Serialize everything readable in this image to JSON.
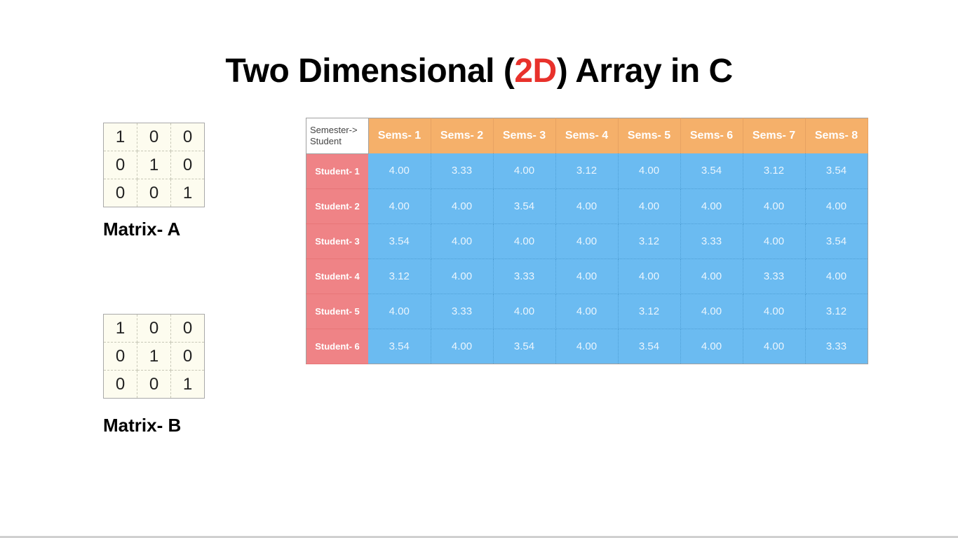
{
  "slide": {
    "title_pre": "Two Dimensional (",
    "title_accent": "2D",
    "title_post": ") Array in C"
  },
  "colors": {
    "title_accent": "#e8312b",
    "header_orange": "#f5b06a",
    "row_header_pink": "#ef8386",
    "cell_blue": "#6bbbf1",
    "matrix_bg": "#fdfcef"
  },
  "matrix_a": {
    "label": "Matrix- A",
    "rows": [
      [
        "1",
        "0",
        "0"
      ],
      [
        "0",
        "1",
        "0"
      ],
      [
        "0",
        "0",
        "1"
      ]
    ]
  },
  "matrix_b": {
    "label": "Matrix- B",
    "rows": [
      [
        "1",
        "0",
        "0"
      ],
      [
        "0",
        "1",
        "0"
      ],
      [
        "0",
        "0",
        "1"
      ]
    ]
  },
  "grades_table": {
    "corner_line1": "Semester->",
    "corner_line2": "Student",
    "columns": [
      "Sems- 1",
      "Sems- 2",
      "Sems- 3",
      "Sems- 4",
      "Sems- 5",
      "Sems- 6",
      "Sems- 7",
      "Sems- 8"
    ],
    "rows": [
      {
        "label": "Student- 1",
        "values": [
          "4.00",
          "3.33",
          "4.00",
          "3.12",
          "4.00",
          "3.54",
          "3.12",
          "3.54"
        ]
      },
      {
        "label": "Student- 2",
        "values": [
          "4.00",
          "4.00",
          "3.54",
          "4.00",
          "4.00",
          "4.00",
          "4.00",
          "4.00"
        ]
      },
      {
        "label": "Student- 3",
        "values": [
          "3.54",
          "4.00",
          "4.00",
          "4.00",
          "3.12",
          "3.33",
          "4.00",
          "3.54"
        ]
      },
      {
        "label": "Student- 4",
        "values": [
          "3.12",
          "4.00",
          "3.33",
          "4.00",
          "4.00",
          "4.00",
          "3.33",
          "4.00"
        ]
      },
      {
        "label": "Student- 5",
        "values": [
          "4.00",
          "3.33",
          "4.00",
          "4.00",
          "3.12",
          "4.00",
          "4.00",
          "3.12"
        ]
      },
      {
        "label": "Student- 6",
        "values": [
          "3.54",
          "4.00",
          "3.54",
          "4.00",
          "3.54",
          "4.00",
          "4.00",
          "3.33"
        ]
      }
    ]
  }
}
